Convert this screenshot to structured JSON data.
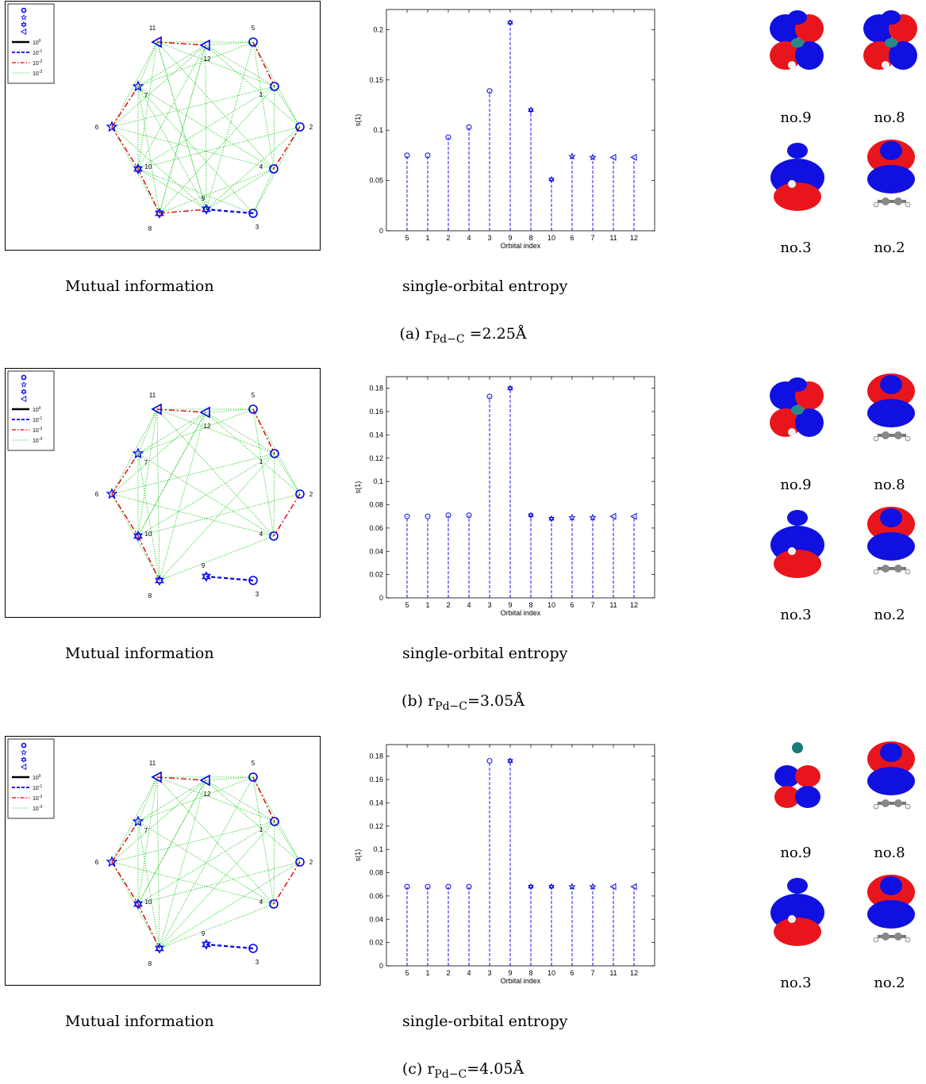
{
  "legend": {
    "line_labels": [
      "10^0",
      "10^-1",
      "10^-2",
      "10^-3"
    ]
  },
  "colors": {
    "marker": "#0000ee",
    "strong": "#000000",
    "medium": "#0000ee",
    "weak": "#e00000",
    "weakest": "#22cc22",
    "orbital_red": "#e8161c",
    "orbital_blue": "#1010e0"
  },
  "panels": [
    {
      "caption_mi": "Mutual information",
      "caption_entropy": "single-orbital entropy",
      "subcaption": "(a) r",
      "subcaption_sub": "Pd−C",
      "subcaption_value": " =2.25Å",
      "mutual_information": {
        "orbital_labels": [
          "5",
          "1",
          "2",
          "4",
          "3",
          "9",
          "8",
          "10",
          "6",
          "7",
          "11",
          "12"
        ],
        "links_medium": [
          [
            "3",
            "9"
          ]
        ],
        "links_weak": [
          [
            "5",
            "1"
          ],
          [
            "2",
            "4"
          ],
          [
            "6",
            "7"
          ],
          [
            "6",
            "10"
          ],
          [
            "10",
            "8"
          ],
          [
            "8",
            "9"
          ],
          [
            "11",
            "12"
          ]
        ]
      },
      "chart_data": {
        "type": "stem",
        "xlabel": "Orbital index",
        "ylabel": "s(1)",
        "categories": [
          "5",
          "1",
          "2",
          "4",
          "3",
          "9",
          "8",
          "10",
          "6",
          "7",
          "11",
          "12"
        ],
        "values": [
          0.075,
          0.075,
          0.093,
          0.103,
          0.139,
          0.207,
          0.12,
          0.051,
          0.074,
          0.073,
          0.073,
          0.073
        ],
        "ylim": [
          0,
          0.22
        ],
        "yticks": [
          "0",
          "0.05",
          "0.1",
          "0.15",
          "0.2"
        ]
      },
      "orbitals": [
        {
          "label": "no.9",
          "shape": "d-lobes"
        },
        {
          "label": "no.8",
          "shape": "d-lobes"
        },
        {
          "label": "no.3",
          "shape": "sigma"
        },
        {
          "label": "no.2",
          "shape": "pi-molecule"
        }
      ]
    },
    {
      "caption_mi": "Mutual information",
      "caption_entropy": "single-orbital entropy",
      "subcaption": "(b) r",
      "subcaption_sub": "Pd−C",
      "subcaption_value": "=3.05Å",
      "mutual_information": {
        "orbital_labels": [
          "5",
          "1",
          "2",
          "4",
          "3",
          "9",
          "8",
          "10",
          "6",
          "7",
          "11",
          "12"
        ],
        "links_medium": [
          [
            "3",
            "9"
          ]
        ],
        "links_weak": [
          [
            "5",
            "1"
          ],
          [
            "2",
            "4"
          ],
          [
            "6",
            "7"
          ],
          [
            "6",
            "10"
          ],
          [
            "10",
            "8"
          ],
          [
            "11",
            "12"
          ]
        ]
      },
      "chart_data": {
        "type": "stem",
        "xlabel": "Orbital index",
        "ylabel": "s(1)",
        "categories": [
          "5",
          "1",
          "2",
          "4",
          "3",
          "9",
          "8",
          "10",
          "6",
          "7",
          "11",
          "12"
        ],
        "values": [
          0.07,
          0.07,
          0.071,
          0.071,
          0.173,
          0.18,
          0.071,
          0.068,
          0.069,
          0.069,
          0.07,
          0.07
        ],
        "ylim": [
          0,
          0.19
        ],
        "yticks": [
          "0",
          "0.02",
          "0.04",
          "0.06",
          "0.08",
          "0.1",
          "0.12",
          "0.14",
          "0.16",
          "0.18"
        ]
      },
      "orbitals": [
        {
          "label": "no.9",
          "shape": "d-lobes"
        },
        {
          "label": "no.8",
          "shape": "pi-molecule"
        },
        {
          "label": "no.3",
          "shape": "sigma"
        },
        {
          "label": "no.2",
          "shape": "pi-molecule"
        }
      ]
    },
    {
      "caption_mi": "Mutual information",
      "caption_entropy": "single-orbital entropy",
      "subcaption": "(c) r",
      "subcaption_sub": "Pd−C",
      "subcaption_value": "=4.05Å",
      "mutual_information": {
        "orbital_labels": [
          "5",
          "1",
          "2",
          "4",
          "3",
          "9",
          "8",
          "10",
          "6",
          "7",
          "11",
          "12"
        ],
        "links_medium": [
          [
            "3",
            "9"
          ]
        ],
        "links_weak": [
          [
            "5",
            "1"
          ],
          [
            "2",
            "4"
          ],
          [
            "6",
            "7"
          ],
          [
            "6",
            "10"
          ],
          [
            "10",
            "8"
          ],
          [
            "11",
            "12"
          ]
        ]
      },
      "chart_data": {
        "type": "stem",
        "xlabel": "Orbital index",
        "ylabel": "s(1)",
        "categories": [
          "5",
          "1",
          "2",
          "4",
          "3",
          "9",
          "8",
          "10",
          "6",
          "7",
          "11",
          "12"
        ],
        "values": [
          0.068,
          0.068,
          0.068,
          0.068,
          0.176,
          0.176,
          0.068,
          0.068,
          0.068,
          0.068,
          0.068,
          0.068
        ],
        "ylim": [
          0,
          0.19
        ],
        "yticks": [
          "0",
          "0.02",
          "0.04",
          "0.06",
          "0.08",
          "0.1",
          "0.12",
          "0.14",
          "0.16",
          "0.18"
        ]
      },
      "orbitals": [
        {
          "label": "no.9",
          "shape": "clover"
        },
        {
          "label": "no.8",
          "shape": "pi-molecule"
        },
        {
          "label": "no.3",
          "shape": "sigma"
        },
        {
          "label": "no.2",
          "shape": "pi-molecule"
        }
      ]
    }
  ]
}
